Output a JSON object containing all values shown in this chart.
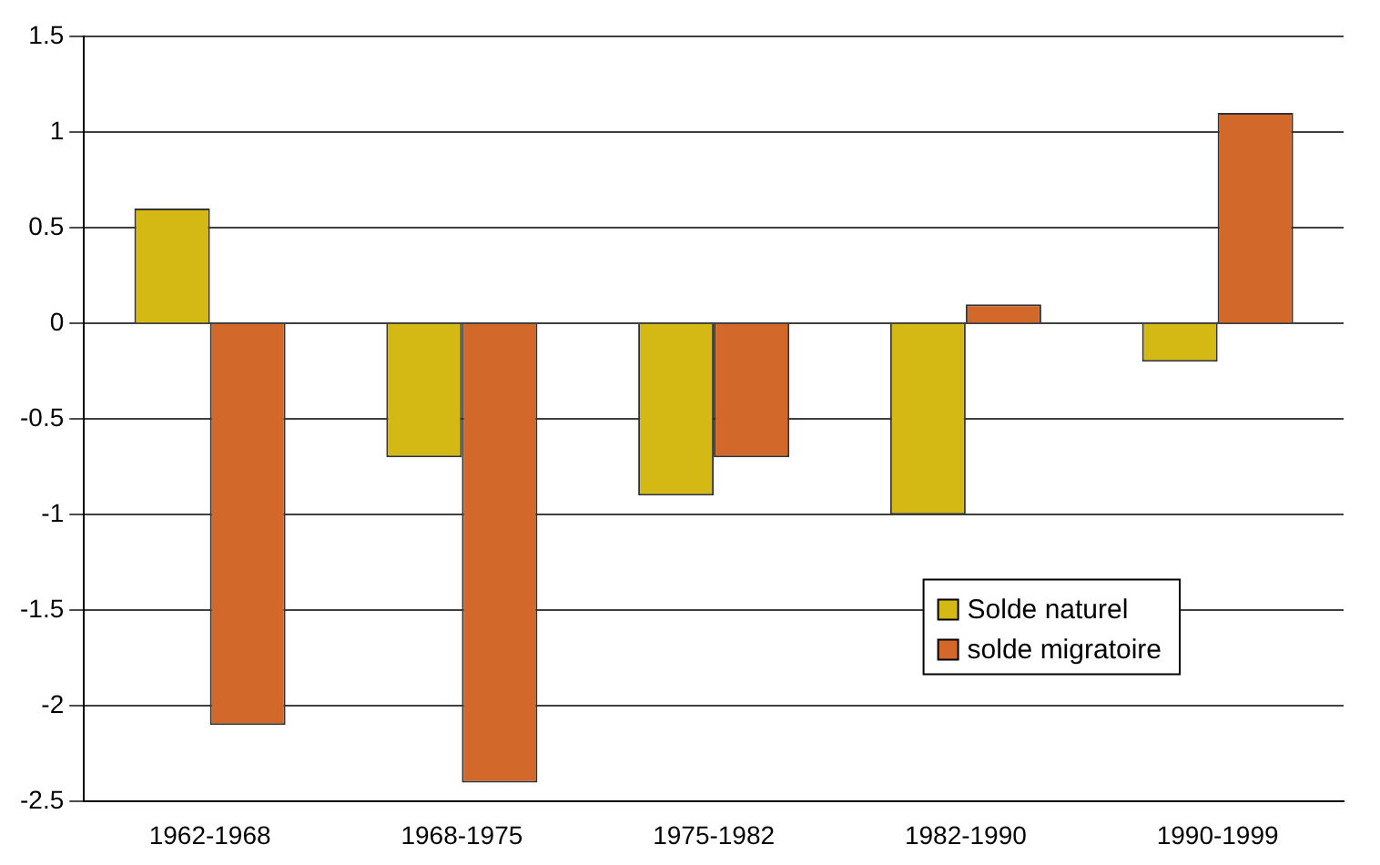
{
  "chart_data": {
    "type": "bar",
    "categories": [
      "1962-1968",
      "1968-1975",
      "1975-1982",
      "1982-1990",
      "1990-1999"
    ],
    "series": [
      {
        "name": "Solde naturel",
        "color": "#d4b814",
        "values": [
          0.6,
          -0.7,
          -0.9,
          -1.0,
          -0.2
        ]
      },
      {
        "name": "solde migratoire",
        "color": "#d2692a",
        "values": [
          -2.1,
          -2.4,
          -0.7,
          0.1,
          1.1
        ]
      }
    ],
    "ylim": [
      -2.5,
      1.5
    ],
    "yticks": [
      -2.5,
      -2,
      -1.5,
      -1,
      -0.5,
      0,
      0.5,
      1,
      1.5
    ],
    "grid": "y",
    "legend": "bottom right"
  }
}
